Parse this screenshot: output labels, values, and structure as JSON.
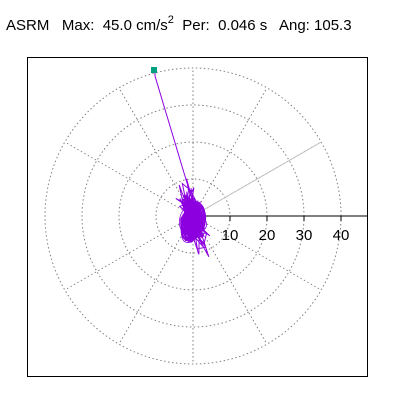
{
  "header": {
    "station": "ASRM",
    "max_label": "Max:",
    "max_value": "45.0 cm/s",
    "max_exponent": "2",
    "per_label": "Per:",
    "per_value": "0.046 s",
    "ang_label": "Ang:",
    "ang_value": "105.3"
  },
  "chart_data": {
    "type": "polar-trace",
    "rings": [
      10,
      20,
      30,
      40
    ],
    "tick_labels": [
      "10",
      "20",
      "30",
      "40"
    ],
    "r_max": 40,
    "angle_deg": 105.3,
    "trace_color": "#8c00e0",
    "ring_color": "#808080",
    "marker_color": "#00a080"
  }
}
